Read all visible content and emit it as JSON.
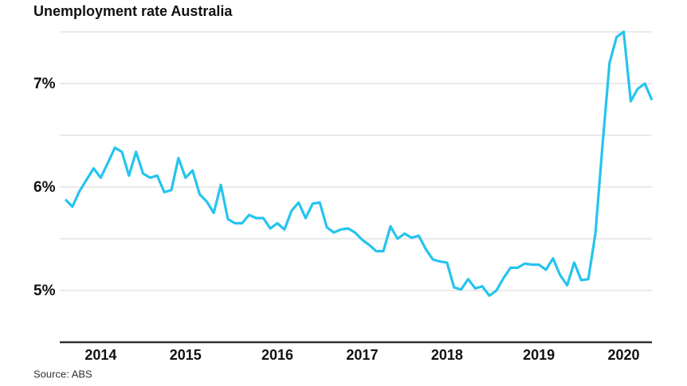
{
  "chart_data": {
    "type": "line",
    "title": "Unemployment rate Australia",
    "source": "Source: ABS",
    "categories": [
      null,
      null,
      null,
      null,
      null,
      "2014",
      null,
      null,
      null,
      null,
      null,
      null,
      null,
      null,
      null,
      null,
      null,
      "2015",
      null,
      null,
      null,
      null,
      null,
      null,
      null,
      null,
      null,
      null,
      null,
      null,
      "2016",
      null,
      null,
      null,
      null,
      null,
      null,
      null,
      null,
      null,
      null,
      null,
      "2017",
      null,
      null,
      null,
      null,
      null,
      null,
      null,
      null,
      null,
      null,
      null,
      "2018",
      null,
      null,
      null,
      null,
      null,
      null,
      null,
      null,
      null,
      null,
      null,
      null,
      "2019",
      null,
      null,
      null,
      null,
      null,
      null,
      null,
      null,
      null,
      null,
      null,
      "2020",
      null,
      null,
      null,
      null
    ],
    "series": [
      {
        "name": "Unemployment rate",
        "color": "#25c4ee",
        "values": [
          5.88,
          5.81,
          5.96,
          6.07,
          6.18,
          6.09,
          6.23,
          6.38,
          6.34,
          6.11,
          6.34,
          6.13,
          6.09,
          6.11,
          5.95,
          5.97,
          6.28,
          6.09,
          6.16,
          5.93,
          5.86,
          5.75,
          6.02,
          5.69,
          5.65,
          5.65,
          5.73,
          5.7,
          5.7,
          5.6,
          5.65,
          5.59,
          5.77,
          5.85,
          5.7,
          5.84,
          5.85,
          5.61,
          5.56,
          5.59,
          5.6,
          5.56,
          5.49,
          5.44,
          5.38,
          5.38,
          5.62,
          5.5,
          5.55,
          5.51,
          5.53,
          5.4,
          5.3,
          5.28,
          5.27,
          5.03,
          5.01,
          5.11,
          5.02,
          5.04,
          4.95,
          5.0,
          5.12,
          5.22,
          5.22,
          5.26,
          5.25,
          5.25,
          5.2,
          5.31,
          5.15,
          5.05,
          5.27,
          5.1,
          5.11,
          5.55,
          6.4,
          7.2,
          7.45,
          7.5,
          6.83,
          6.95,
          7.0,
          6.84
        ]
      }
    ],
    "ylim": [
      4.5,
      7.5
    ],
    "yticks": [
      {
        "value": 5,
        "label": "5%"
      },
      {
        "value": 6,
        "label": "6%"
      },
      {
        "value": 7,
        "label": "7%"
      }
    ],
    "minor_yticks": [
      5.5,
      6.5,
      7.5
    ],
    "grid": true
  }
}
